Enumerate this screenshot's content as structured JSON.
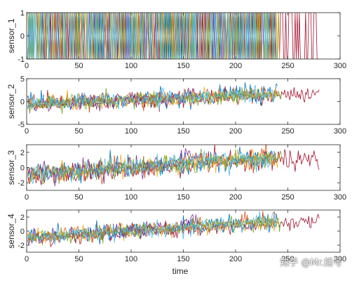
{
  "watermark": "知乎 @Mr.括号",
  "xlabel": "time",
  "colors": [
    "#0072BD",
    "#D95319",
    "#EDB120",
    "#7E2F8E",
    "#77AC30",
    "#4DBEEE",
    "#A2142F"
  ],
  "chart_data": [
    {
      "type": "line",
      "ylabel": "sensor_1",
      "xlim": [
        0,
        300
      ],
      "ylim": [
        -1,
        1
      ],
      "xticks": [
        0,
        50,
        100,
        150,
        200,
        250,
        300
      ],
      "yticks": [
        -1,
        0,
        1
      ],
      "signal": "binary",
      "series_lengths": [
        240,
        238,
        242,
        236,
        244,
        239,
        280
      ],
      "trend_start": 0,
      "trend_end": 0,
      "noise": 1
    },
    {
      "type": "line",
      "ylabel": "sensor_2",
      "xlim": [
        0,
        300
      ],
      "ylim": [
        -5,
        5
      ],
      "xticks": [
        0,
        50,
        100,
        150,
        200,
        250,
        300
      ],
      "yticks": [
        -5,
        0,
        5
      ],
      "signal": "noisy-trend",
      "series_lengths": [
        240,
        238,
        242,
        165,
        244,
        239,
        280
      ],
      "trend_start": -0.5,
      "trend_end": 2.0,
      "noise": 0.9
    },
    {
      "type": "line",
      "ylabel": "sensor_3",
      "xlim": [
        0,
        300
      ],
      "ylim": [
        -3,
        3
      ],
      "xticks": [
        0,
        50,
        100,
        150,
        200,
        250,
        300
      ],
      "yticks": [
        -2,
        0,
        2
      ],
      "signal": "noisy-trend",
      "series_lengths": [
        240,
        238,
        242,
        165,
        244,
        239,
        280
      ],
      "trend_start": -0.9,
      "trend_end": 1.7,
      "noise": 0.65
    },
    {
      "type": "line",
      "ylabel": "sensor_4",
      "xlim": [
        0,
        300
      ],
      "ylim": [
        -3,
        3
      ],
      "xticks": [
        0,
        50,
        100,
        150,
        200,
        250,
        300
      ],
      "yticks": [
        -2,
        0,
        2
      ],
      "signal": "noisy-trend",
      "series_lengths": [
        240,
        238,
        242,
        165,
        244,
        239,
        280
      ],
      "trend_start": -0.9,
      "trend_end": 1.8,
      "noise": 0.55
    }
  ]
}
